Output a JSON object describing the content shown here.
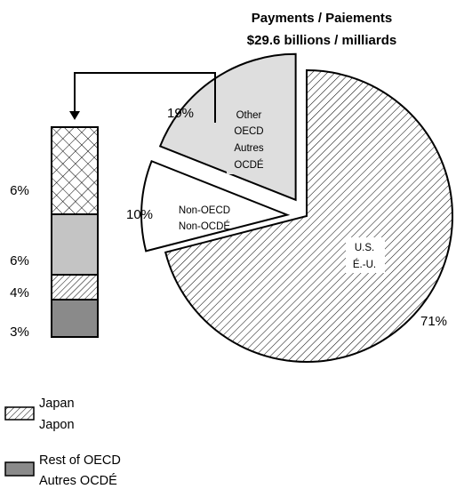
{
  "chart_data": {
    "type": "pie",
    "title_line1": "Payments / Paiements",
    "title_line2": "$29.6 billions / milliards",
    "slices": [
      {
        "label_en": "U.S.",
        "label_fr": "É.-U.",
        "value": 71,
        "value_label": "71%",
        "fill": "#ffffff",
        "pattern": "diagonal-hatch"
      },
      {
        "label_en": "Non-OECD",
        "label_fr": "Non-OCDÉ",
        "value": 10,
        "value_label": "10%",
        "fill": "#ffffff",
        "pattern": "none",
        "exploded": true
      },
      {
        "label_lines": [
          "Other",
          "OECD",
          "Autres",
          "OCDÉ"
        ],
        "value": 19,
        "value_label": "19%",
        "fill": "#dedede",
        "pattern": "none",
        "exploded": true
      }
    ],
    "breakdown_bar": {
      "of_slice": "Other OECD / Autres OCDÉ",
      "segments": [
        {
          "legend_key": "",
          "value_label": "6%",
          "fill": "#ffffff",
          "pattern": "crosshatch"
        },
        {
          "legend_key": "",
          "value_label": "6%",
          "fill": "#c4c4c4",
          "pattern": "none"
        },
        {
          "legend_key": "japan",
          "value_label": "4%",
          "fill": "#ffffff",
          "pattern": "hatch"
        },
        {
          "legend_key": "rest_oecd",
          "value_label": "3%",
          "fill": "#8a8a8a",
          "pattern": "none"
        }
      ]
    },
    "legend": [
      {
        "key": "japan",
        "label_line1": "Japan",
        "label_line2": "Japon",
        "fill": "#ffffff",
        "pattern": "hatch"
      },
      {
        "key": "rest_oecd",
        "label_line1": "Rest of OECD",
        "label_line2": "Autres OCDÉ",
        "fill": "#8a8a8a",
        "pattern": "none"
      }
    ]
  }
}
